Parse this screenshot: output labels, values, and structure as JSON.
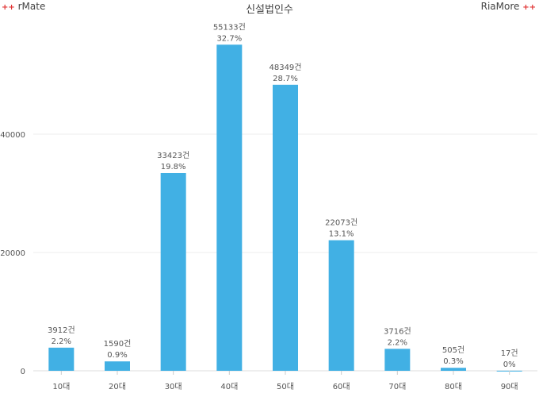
{
  "brand_left": "rMate",
  "brand_right": "RiaMore",
  "brand_mark": "+",
  "chart_data": {
    "type": "bar",
    "title": "신설법인수",
    "categories": [
      "10대",
      "20대",
      "30대",
      "40대",
      "50대",
      "60대",
      "70대",
      "80대",
      "90대"
    ],
    "values": [
      3912,
      1590,
      33423,
      55133,
      48349,
      22073,
      3716,
      505,
      17
    ],
    "value_labels": [
      "3912건",
      "1590건",
      "33423건",
      "55133건",
      "48349건",
      "22073건",
      "3716건",
      "505건",
      "17건"
    ],
    "percent_labels": [
      "2.2%",
      "0.9%",
      "19.8%",
      "32.7%",
      "28.7%",
      "13.1%",
      "2.2%",
      "0.3%",
      "0%"
    ],
    "y_ticks": [
      0,
      20000,
      40000
    ],
    "ylim": [
      0,
      60000
    ],
    "grid": true,
    "bar_color": "#41b0e4",
    "grid_color": "#eeeeee"
  }
}
